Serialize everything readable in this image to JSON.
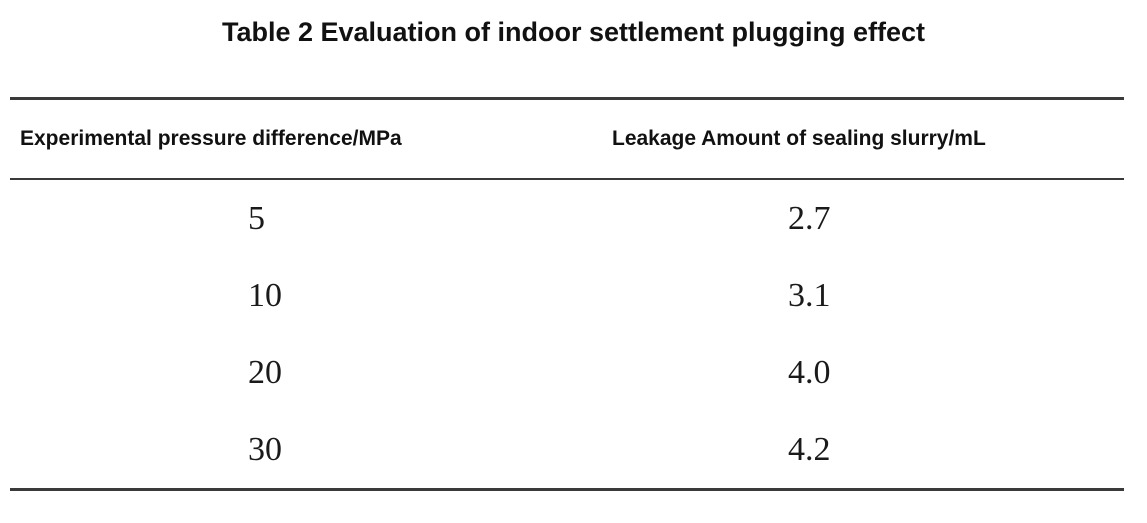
{
  "title": "Table 2 Evaluation of indoor settlement plugging effect",
  "table": {
    "headers": [
      "Experimental pressure difference/MPa",
      "Leakage Amount of sealing slurry/mL"
    ],
    "rows": [
      [
        "5",
        "2.7"
      ],
      [
        "10",
        "3.1"
      ],
      [
        "20",
        "4.0"
      ],
      [
        "30",
        "4.2"
      ]
    ]
  }
}
